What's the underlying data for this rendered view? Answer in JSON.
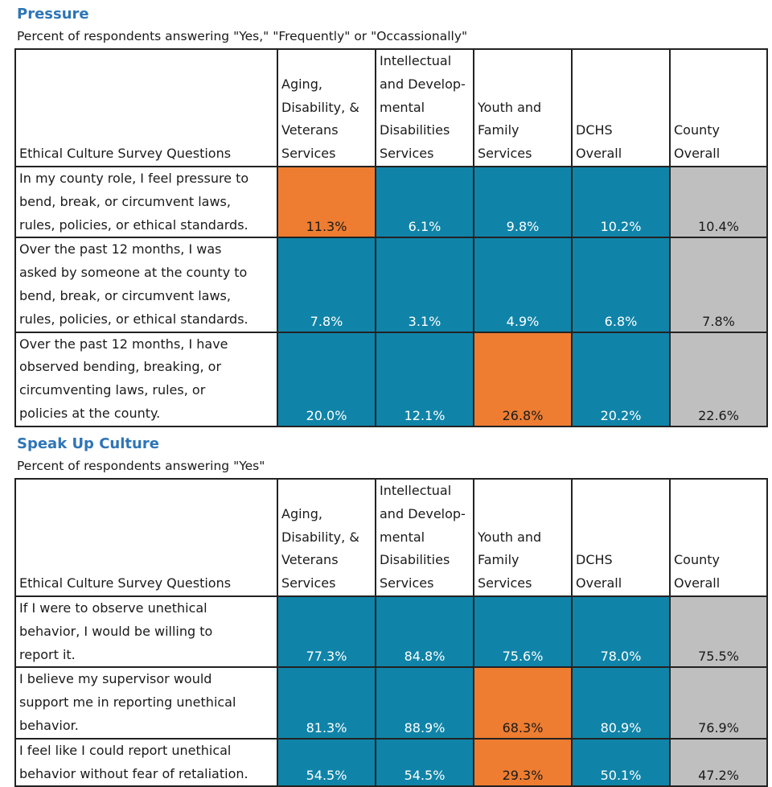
{
  "colors": {
    "teal": "#0f84a8",
    "orange": "#ee7d31",
    "gray": "#bfbfbf",
    "title_blue": "#2e75b6"
  },
  "pressure": {
    "title": "Pressure",
    "subtitle": "Percent of respondents answering \"Yes,\" \"Frequently\" or \"Occassionally\"",
    "header": {
      "questions": "Ethical Culture Survey Questions",
      "col1": [
        "Aging,",
        "Disability, &",
        "Veterans",
        "Services"
      ],
      "col2": [
        "Intellectual",
        "and Develop-",
        "mental",
        "Disabilities",
        "Services"
      ],
      "col3": [
        "Youth and",
        "Family",
        "Services"
      ],
      "col4": [
        "DCHS",
        "Overall"
      ],
      "col5": [
        "County",
        "Overall"
      ]
    },
    "rows": [
      {
        "question": [
          "In my county role, I feel pressure to",
          "bend, break, or circumvent laws,",
          "rules, policies, or ethical standards."
        ],
        "values": [
          "11.3%",
          "6.1%",
          "9.8%",
          "10.2%",
          "10.4%"
        ],
        "colors": [
          "orange",
          "teal",
          "teal",
          "teal",
          "gray"
        ]
      },
      {
        "question": [
          "Over the past 12 months, I was",
          "asked by someone at the county to",
          "bend, break, or circumvent laws,",
          "rules, policies, or ethical standards."
        ],
        "values": [
          "7.8%",
          "3.1%",
          "4.9%",
          "6.8%",
          "7.8%"
        ],
        "colors": [
          "teal",
          "teal",
          "teal",
          "teal",
          "gray"
        ]
      },
      {
        "question": [
          "Over the past 12 months, I have",
          "observed bending, breaking, or",
          "circumventing laws, rules, or",
          "policies at the county."
        ],
        "values": [
          "20.0%",
          "12.1%",
          "26.8%",
          "20.2%",
          "22.6%"
        ],
        "colors": [
          "teal",
          "teal",
          "orange",
          "teal",
          "gray"
        ]
      }
    ]
  },
  "speakup": {
    "title": "Speak Up Culture",
    "subtitle": "Percent of respondents answering \"Yes\"",
    "header": {
      "questions": "Ethical Culture Survey Questions",
      "col1": [
        "Aging,",
        "Disability, &",
        "Veterans",
        "Services"
      ],
      "col2": [
        "Intellectual",
        "and Develop-",
        "mental",
        "Disabilities",
        "Services"
      ],
      "col3": [
        "Youth and",
        "Family",
        "Services"
      ],
      "col4": [
        "DCHS",
        "Overall"
      ],
      "col5": [
        "County",
        "Overall"
      ]
    },
    "rows": [
      {
        "question": [
          "If I were to observe unethical",
          "behavior, I would be willing to",
          "report it."
        ],
        "values": [
          "77.3%",
          "84.8%",
          "75.6%",
          "78.0%",
          "75.5%"
        ],
        "colors": [
          "teal",
          "teal",
          "teal",
          "teal",
          "gray"
        ]
      },
      {
        "question": [
          "I believe my supervisor would",
          "support me in reporting unethical",
          "behavior."
        ],
        "values": [
          "81.3%",
          "88.9%",
          "68.3%",
          "80.9%",
          "76.9%"
        ],
        "colors": [
          "teal",
          "teal",
          "orange",
          "teal",
          "gray"
        ]
      },
      {
        "question": [
          "I feel like I could report unethical",
          "behavior without fear of retaliation."
        ],
        "values": [
          "54.5%",
          "54.5%",
          "29.3%",
          "50.1%",
          "47.2%"
        ],
        "colors": [
          "teal",
          "teal",
          "orange",
          "teal",
          "gray"
        ]
      }
    ]
  }
}
